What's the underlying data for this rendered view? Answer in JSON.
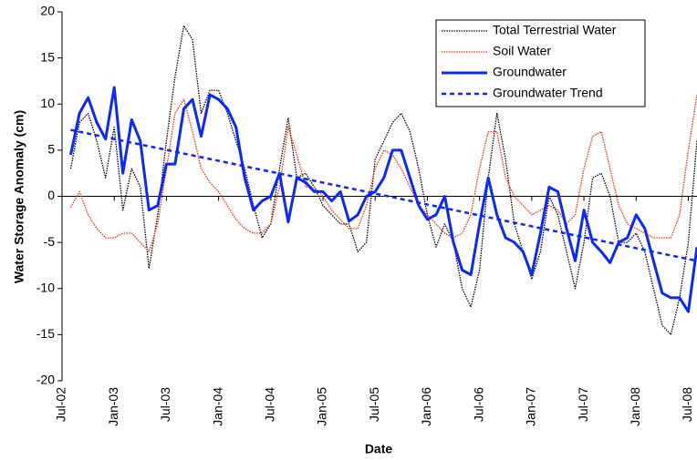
{
  "chart_data": {
    "type": "line",
    "y_label": "Water Storage Anomaly (cm)",
    "x_label": "Date",
    "x": [
      "2002-08",
      "2002-09",
      "2002-10",
      "2002-11",
      "2002-12",
      "2003-01",
      "2003-02",
      "2003-03",
      "2003-04",
      "2003-05",
      "2003-06",
      "2003-07",
      "2003-08",
      "2003-09",
      "2003-10",
      "2003-11",
      "2003-12",
      "2004-01",
      "2004-02",
      "2004-03",
      "2004-04",
      "2004-05",
      "2004-06",
      "2004-07",
      "2004-08",
      "2004-09",
      "2004-10",
      "2004-11",
      "2004-12",
      "2005-01",
      "2005-02",
      "2005-03",
      "2005-04",
      "2005-05",
      "2005-06",
      "2005-07",
      "2005-08",
      "2005-09",
      "2005-10",
      "2005-11",
      "2005-12",
      "2006-01",
      "2006-02",
      "2006-03",
      "2006-04",
      "2006-05",
      "2006-06",
      "2006-07",
      "2006-08",
      "2006-09",
      "2006-10",
      "2006-11",
      "2006-12",
      "2007-01",
      "2007-02",
      "2007-03",
      "2007-04",
      "2007-05",
      "2007-06",
      "2007-07",
      "2007-08",
      "2007-09",
      "2007-10",
      "2007-11",
      "2007-12",
      "2008-01",
      "2008-02",
      "2008-03",
      "2008-04",
      "2008-05",
      "2008-06",
      "2008-07",
      "2008-08"
    ],
    "series": [
      {
        "name": "Total Terrestrial Water",
        "color": "#000000",
        "line_style": "dotted",
        "values": [
          3,
          8,
          9,
          6,
          2,
          7.5,
          -1.5,
          3,
          1,
          -7.8,
          -2,
          6,
          13,
          18.5,
          17,
          9,
          11.5,
          11.5,
          9,
          6,
          3,
          -1,
          -4.5,
          -3,
          3,
          8.5,
          2,
          2.5,
          1,
          -1,
          -2,
          -3,
          -3,
          -6,
          -5,
          4,
          6,
          8,
          9,
          7,
          3,
          -2,
          -5.5,
          -3,
          -5,
          -10,
          -12,
          -8,
          2,
          9,
          4,
          -3,
          -6,
          -9,
          -6,
          0,
          -2,
          -6,
          -10,
          -5,
          2,
          2.5,
          0,
          -5,
          -5,
          -4,
          -6,
          -10,
          -14,
          -15,
          -11,
          -5,
          6
        ]
      },
      {
        "name": "Soil Water",
        "color": "#ff2a00",
        "line_style": "dotted",
        "values": [
          -1.2,
          0.5,
          -2,
          -3.5,
          -4.5,
          -4.5,
          -4,
          -4,
          -5,
          -6,
          -3,
          3,
          9,
          10.5,
          7,
          3,
          1.5,
          0.5,
          -1,
          -2.5,
          -3.5,
          -4,
          -4,
          -3,
          1,
          7.5,
          4.5,
          1,
          1,
          0,
          -1.5,
          -2.5,
          -3.5,
          -3.5,
          -1,
          3,
          5,
          4.5,
          3,
          1,
          -1,
          -2,
          -3,
          -4,
          -4.5,
          -4,
          -2,
          3,
          7,
          7,
          2,
          0,
          -1,
          -2,
          -1.5,
          -1,
          -1.5,
          -3,
          -2,
          3,
          6.5,
          7,
          3,
          -1,
          -3,
          -3.5,
          -4,
          -4.5,
          -4.5,
          -4.5,
          -2,
          5,
          11
        ]
      },
      {
        "name": "Groundwater",
        "color": "#0a28ff",
        "line_style": "solid",
        "values": [
          4.5,
          9,
          10.7,
          8,
          6.2,
          11.8,
          2.5,
          8.3,
          6,
          -1.5,
          -1,
          3.5,
          3.5,
          9.5,
          10.5,
          6.5,
          11,
          10.5,
          9.5,
          7.5,
          2,
          -1.5,
          -0.5,
          0,
          2.5,
          -2.8,
          2,
          1.5,
          0.5,
          0.5,
          -0.5,
          0.5,
          -2.7,
          -2,
          0,
          0.5,
          2,
          5,
          5,
          2,
          -1,
          -2.5,
          -2,
          0,
          -5,
          -8,
          -8.5,
          -3,
          2,
          -2,
          -4.5,
          -5,
          -6,
          -8.5,
          -4,
          1,
          0.5,
          -3.5,
          -7,
          -1.5,
          -5,
          -6,
          -7.2,
          -5,
          -4.5,
          -2,
          -3.5,
          -7,
          -10.5,
          -11,
          -11,
          -12.5,
          -5.5
        ]
      },
      {
        "name": "Groundwater Trend",
        "color": "#0a28ff",
        "line_style": "dashed",
        "x": [
          "2002-08",
          "2008-08"
        ],
        "values": [
          7.2,
          -7
        ]
      }
    ],
    "xlim": [
      "2002-07",
      "2008-08"
    ],
    "xticks": [
      {
        "value": "2002-07",
        "label": "Jul-02"
      },
      {
        "value": "2003-01",
        "label": "Jan-03"
      },
      {
        "value": "2003-07",
        "label": "Jul-03"
      },
      {
        "value": "2004-01",
        "label": "Jan-04"
      },
      {
        "value": "2004-07",
        "label": "Jul-04"
      },
      {
        "value": "2005-01",
        "label": "Jan-05"
      },
      {
        "value": "2005-07",
        "label": "Jul-05"
      },
      {
        "value": "2006-01",
        "label": "Jan-06"
      },
      {
        "value": "2006-07",
        "label": "Jul-06"
      },
      {
        "value": "2007-01",
        "label": "Jan-07"
      },
      {
        "value": "2007-07",
        "label": "Jul-07"
      },
      {
        "value": "2008-01",
        "label": "Jan-08"
      },
      {
        "value": "2008-07",
        "label": "Jul-08"
      }
    ],
    "ylim": [
      -20,
      20
    ],
    "yticks": [
      -20,
      -15,
      -10,
      -5,
      0,
      5,
      10,
      15,
      20
    ],
    "legend": "upper right"
  }
}
